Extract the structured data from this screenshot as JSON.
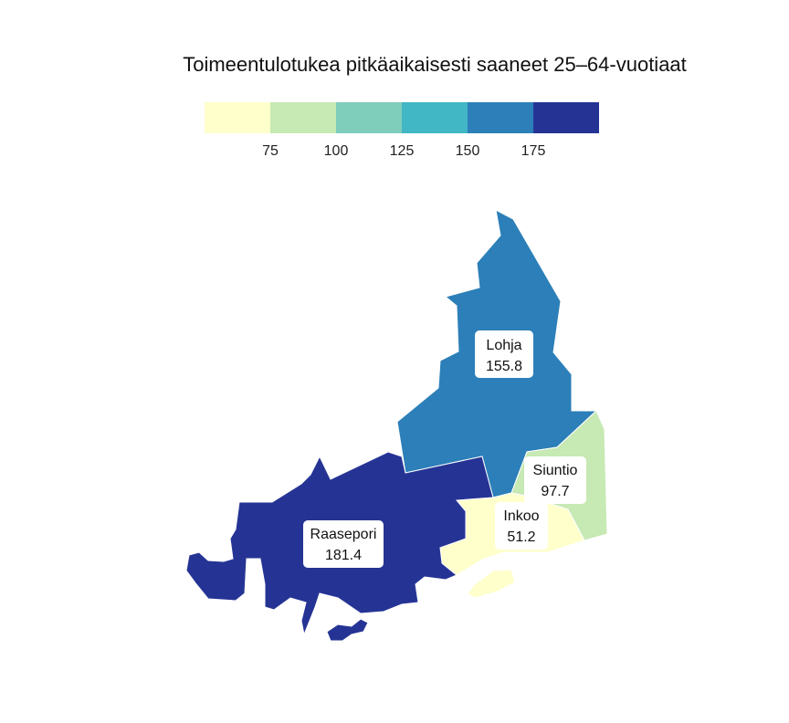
{
  "title": "Toimeentulotukea pitkäaikaisesti saaneet 25–64-vuotiaat",
  "legend": {
    "colors": [
      "#ffffcc",
      "#c7e9b4",
      "#7fcdbb",
      "#41b6c4",
      "#2c7fb8",
      "#253494"
    ],
    "ticks": [
      "75",
      "100",
      "125",
      "150",
      "175"
    ]
  },
  "chart_data": {
    "type": "choropleth",
    "title": "Toimeentulotukea pitkäaikaisesti saaneet 25–64-vuotiaat",
    "breaks": [
      75,
      100,
      125,
      150,
      175
    ],
    "regions": [
      {
        "name": "Lohja",
        "value": "155.8",
        "color": "#2c7fb8"
      },
      {
        "name": "Raasepori",
        "value": "181.4",
        "color": "#253494"
      },
      {
        "name": "Siuntio",
        "value": "97.7",
        "color": "#c7e9b4"
      },
      {
        "name": "Inkoo",
        "value": "51.2",
        "color": "#ffffcc"
      }
    ]
  }
}
